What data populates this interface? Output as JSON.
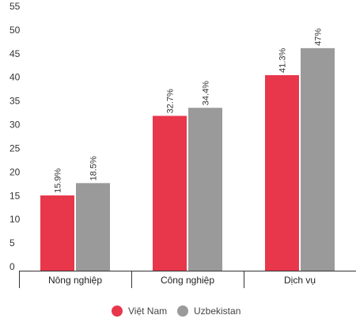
{
  "chart_data": {
    "type": "bar",
    "categories": [
      "Nông nghiệp",
      "Công nghiệp",
      "Dịch vụ"
    ],
    "series": [
      {
        "name": "Việt Nam",
        "values": [
          15.9,
          32.7,
          41.3
        ],
        "labels": [
          "15.9%",
          "32.7%",
          "41.3%"
        ],
        "color": "#e8374b"
      },
      {
        "name": "Uzbekistan",
        "values": [
          18.5,
          34.4,
          47
        ],
        "labels": [
          "18.5%",
          "34.4%",
          "47%"
        ],
        "color": "#9a9a9a"
      }
    ],
    "yticks": [
      0,
      5,
      10,
      15,
      20,
      25,
      30,
      35,
      40,
      45,
      50,
      55
    ],
    "ylim": [
      0,
      55
    ],
    "grid": false,
    "legend": "bottom-center"
  }
}
